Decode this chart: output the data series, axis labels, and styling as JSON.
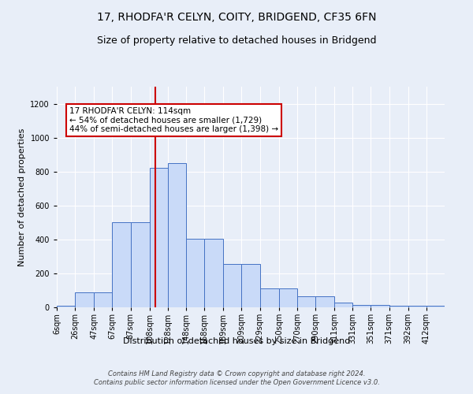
{
  "title": "17, RHODFA'R CELYN, COITY, BRIDGEND, CF35 6FN",
  "subtitle": "Size of property relative to detached houses in Bridgend",
  "xlabel": "Distribution of detached houses by size in Bridgend",
  "ylabel": "Number of detached properties",
  "bin_labels": [
    "6sqm",
    "26sqm",
    "47sqm",
    "67sqm",
    "87sqm",
    "108sqm",
    "128sqm",
    "148sqm",
    "168sqm",
    "189sqm",
    "209sqm",
    "229sqm",
    "250sqm",
    "270sqm",
    "290sqm",
    "311sqm",
    "331sqm",
    "351sqm",
    "371sqm",
    "392sqm",
    "412sqm"
  ],
  "bar_values": [
    10,
    90,
    90,
    500,
    500,
    820,
    850,
    405,
    405,
    255,
    255,
    110,
    110,
    65,
    65,
    30,
    15,
    15,
    10,
    10,
    10
  ],
  "bar_color": "#c9daf8",
  "bar_edge_color": "#4472c4",
  "vline_x": 114,
  "vline_color": "#cc0000",
  "annotation_text": "17 RHODFA'R CELYN: 114sqm\n← 54% of detached houses are smaller (1,729)\n44% of semi-detached houses are larger (1,398) →",
  "annotation_box_color": "#ffffff",
  "annotation_box_edge": "#cc0000",
  "ylim": [
    0,
    1300
  ],
  "yticks": [
    0,
    200,
    400,
    600,
    800,
    1000,
    1200
  ],
  "footer_text": "Contains HM Land Registry data © Crown copyright and database right 2024.\nContains public sector information licensed under the Open Government Licence v3.0.",
  "bg_color": "#e8eef8",
  "grid_color": "#ffffff",
  "title_fontsize": 10,
  "subtitle_fontsize": 9,
  "annot_fontsize": 7.5,
  "ylabel_fontsize": 8,
  "xlabel_fontsize": 8,
  "tick_fontsize": 7,
  "footer_fontsize": 6
}
